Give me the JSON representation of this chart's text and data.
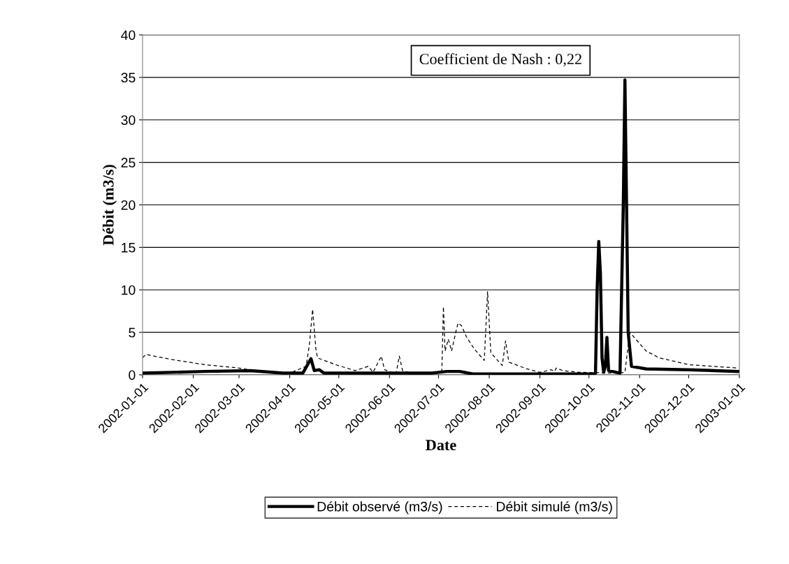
{
  "chart_data": {
    "type": "line",
    "xlabel": "Date",
    "ylabel": "Débit (m3/s)",
    "annotations": [
      "Coefficient de Nash : 0,22"
    ],
    "series": [
      {
        "name": "Débit observé (m3/s)",
        "color": "#000000",
        "line_style": "solid",
        "x": [
          "2002-01-01",
          "2002-02-08",
          "2002-03-08",
          "2002-03-28",
          "2002-04-09",
          "2002-04-14",
          "2002-04-16",
          "2002-04-19",
          "2002-04-22",
          "2002-06-27",
          "2002-07-06",
          "2002-07-14",
          "2002-07-22",
          "2002-10-04",
          "2002-10-05",
          "2002-10-06",
          "2002-10-07",
          "2002-10-08",
          "2002-10-09",
          "2002-10-10",
          "2002-10-11",
          "2002-10-12",
          "2002-10-13",
          "2002-10-20",
          "2002-10-22",
          "2002-10-23",
          "2002-10-24",
          "2002-10-25",
          "2002-10-27",
          "2002-11-05",
          "2002-12-01",
          "2002-12-31"
        ],
        "values": [
          0.2,
          0.4,
          0.5,
          0.2,
          0.2,
          1.9,
          0.5,
          0.6,
          0.2,
          0.2,
          0.4,
          0.4,
          0.1,
          0.1,
          0.2,
          10,
          15.7,
          12,
          2,
          0.3,
          1,
          4.4,
          0.5,
          0.2,
          20,
          34.7,
          20,
          5,
          1.0,
          0.7,
          0.6,
          0.4
        ]
      },
      {
        "name": "Débit simulé (m3/s)",
        "color": "#000000",
        "line_style": "dashed",
        "x": [
          "2002-01-01",
          "2002-01-03",
          "2002-01-19",
          "2002-02-08",
          "2002-03-01",
          "2002-03-16",
          "2002-03-21",
          "2002-04-01",
          "2002-04-11",
          "2002-04-13",
          "2002-04-15",
          "2002-04-17",
          "2002-04-18",
          "2002-04-29",
          "2002-05-11",
          "2002-05-19",
          "2002-05-22",
          "2002-05-27",
          "2002-05-29",
          "2002-06-05",
          "2002-06-07",
          "2002-06-09",
          "2002-06-16",
          "2002-06-28",
          "2002-07-03",
          "2002-07-04",
          "2002-07-05",
          "2002-07-07",
          "2002-07-09",
          "2002-07-12",
          "2002-07-13",
          "2002-07-15",
          "2002-07-18",
          "2002-07-23",
          "2002-07-29",
          "2002-07-31",
          "2002-08-02",
          "2002-08-09",
          "2002-08-11",
          "2002-08-13",
          "2002-08-24",
          "2002-09-01",
          "2002-09-08",
          "2002-09-10",
          "2002-09-11",
          "2002-09-15",
          "2002-09-25",
          "2002-10-18",
          "2002-10-23",
          "2002-10-26",
          "2002-11-05",
          "2002-11-13",
          "2002-12-01",
          "2002-12-31"
        ],
        "values": [
          2.0,
          2.4,
          1.8,
          1.2,
          0.8,
          0.3,
          0.4,
          0.2,
          1.0,
          3.5,
          7.7,
          3.0,
          2.0,
          1.2,
          0.5,
          1.0,
          0.3,
          2.2,
          0.6,
          0.1,
          2.2,
          0.5,
          0.1,
          0.1,
          0.3,
          8.0,
          2.8,
          4.2,
          2.8,
          5.4,
          6.1,
          5.8,
          4.5,
          3.0,
          1.7,
          9.8,
          2.6,
          1.1,
          4.0,
          1.5,
          0.7,
          0.3,
          0.6,
          0.4,
          0.8,
          0.5,
          0.3,
          0.2,
          0.3,
          5.0,
          2.8,
          2.0,
          1.2,
          0.8
        ]
      }
    ],
    "xlim": [
      "2002-01-01",
      "2003-01-01"
    ],
    "xticks": [
      "2002-01-01",
      "2002-02-01",
      "2002-03-01",
      "2002-04-01",
      "2002-05-01",
      "2002-06-01",
      "2002-07-01",
      "2002-08-01",
      "2002-09-01",
      "2002-10-01",
      "2002-11-01",
      "2002-12-01",
      "2003-01-01"
    ],
    "ylim": [
      0,
      40
    ],
    "yticks": [
      0,
      5,
      10,
      15,
      20,
      25,
      30,
      35,
      40
    ],
    "grid": "y",
    "legend": "bottom",
    "marker": "none"
  }
}
